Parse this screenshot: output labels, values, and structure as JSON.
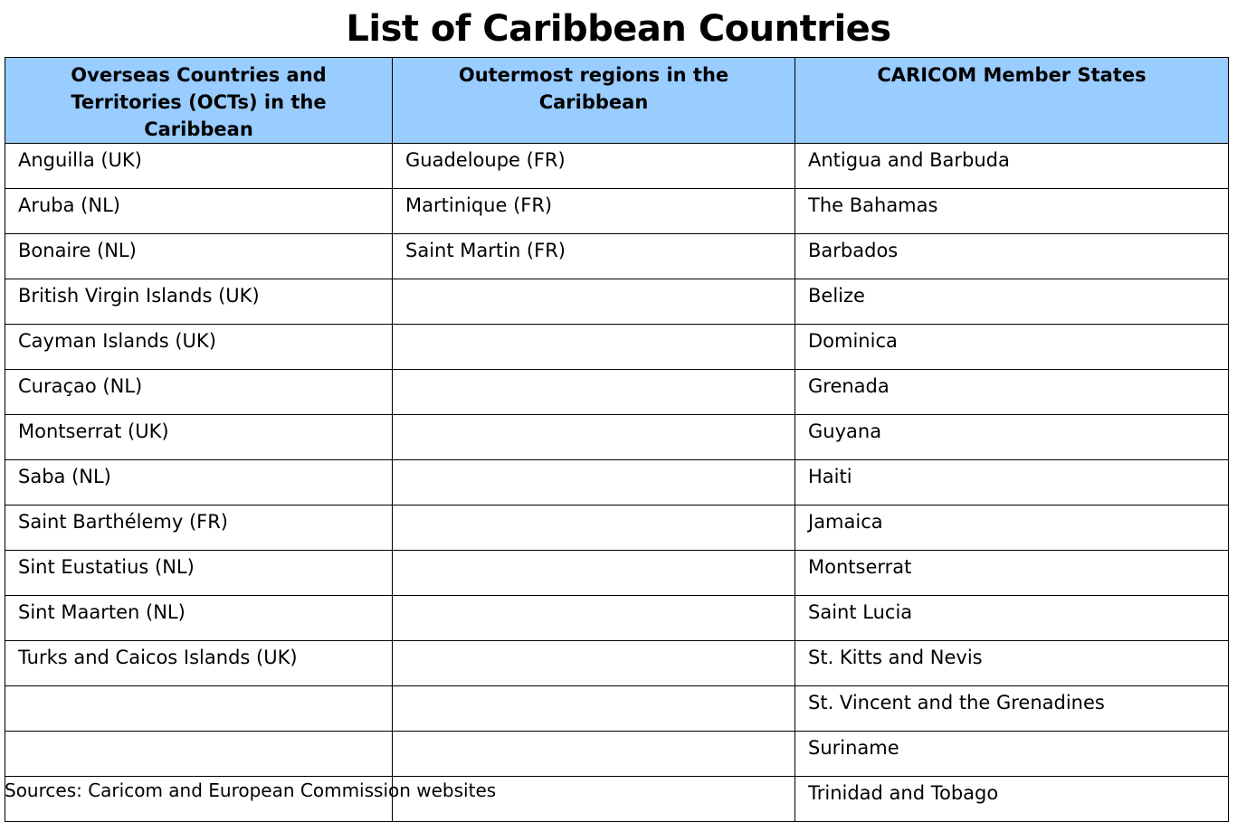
{
  "title": "List of Caribbean Countries",
  "table": {
    "headers": [
      "Overseas Countries and Territories (OCTs) in the Caribbean",
      "Outermost regions in the Caribbean",
      "CARICOM Member States"
    ],
    "rows": [
      [
        "Anguilla (UK)",
        "Guadeloupe (FR)",
        "Antigua and Barbuda"
      ],
      [
        "Aruba (NL)",
        "Martinique (FR)",
        "The Bahamas"
      ],
      [
        "Bonaire (NL)",
        "Saint Martin (FR)",
        "Barbados"
      ],
      [
        "British Virgin Islands (UK)",
        "",
        "Belize"
      ],
      [
        "Cayman Islands (UK)",
        "",
        "Dominica"
      ],
      [
        "Curaçao (NL)",
        "",
        "Grenada"
      ],
      [
        "Montserrat (UK)",
        "",
        "Guyana"
      ],
      [
        "Saba (NL)",
        "",
        "Haiti"
      ],
      [
        "Saint Barthélemy (FR)",
        "",
        "Jamaica"
      ],
      [
        "Sint Eustatius (NL)",
        "",
        "Montserrat"
      ],
      [
        "Sint Maarten (NL)",
        "",
        "Saint Lucia"
      ],
      [
        "Turks and Caicos Islands (UK)",
        "",
        "St. Kitts and Nevis"
      ],
      [
        "",
        "",
        "St. Vincent and the Grenadines"
      ],
      [
        "",
        "",
        "Suriname"
      ],
      [
        "",
        "",
        "Trinidad and Tobago"
      ]
    ]
  },
  "sources": "Sources: Caricom and European Commission websites",
  "colors": {
    "header_background": "#99ccff",
    "border": "#000000",
    "text": "#000000"
  }
}
